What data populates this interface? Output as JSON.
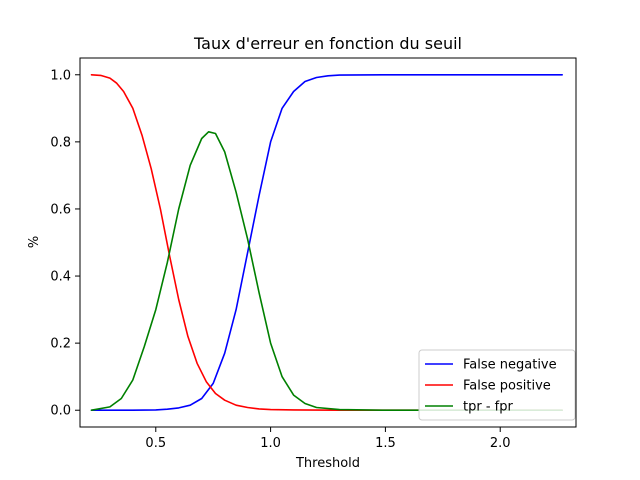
{
  "chart_data": {
    "type": "line",
    "title": "Taux d'erreur en fonction du seuil",
    "xlabel": "Threshold",
    "ylabel": "%",
    "xlim": [
      0.17,
      2.33
    ],
    "ylim": [
      -0.05,
      1.05
    ],
    "xticks": [
      0.5,
      1.0,
      1.5,
      2.0
    ],
    "xtick_labels": [
      "0.5",
      "1.0",
      "1.5",
      "2.0"
    ],
    "yticks": [
      0.0,
      0.2,
      0.4,
      0.6,
      0.8,
      1.0
    ],
    "ytick_labels": [
      "0.0",
      "0.2",
      "0.4",
      "0.6",
      "0.8",
      "1.0"
    ],
    "grid": false,
    "legend_position": "lower-right",
    "series": [
      {
        "name": "False negative",
        "color": "#0000ff",
        "x": [
          0.22,
          0.3,
          0.4,
          0.5,
          0.55,
          0.6,
          0.65,
          0.7,
          0.75,
          0.8,
          0.85,
          0.9,
          0.95,
          1.0,
          1.05,
          1.1,
          1.15,
          1.2,
          1.25,
          1.3,
          1.5,
          2.0,
          2.27
        ],
        "y": [
          0.0,
          0.0,
          0.0,
          0.001,
          0.003,
          0.007,
          0.015,
          0.035,
          0.08,
          0.17,
          0.3,
          0.47,
          0.64,
          0.8,
          0.9,
          0.95,
          0.98,
          0.992,
          0.997,
          0.999,
          1.0,
          1.0,
          1.0
        ]
      },
      {
        "name": "False positive",
        "color": "#ff0000",
        "x": [
          0.22,
          0.26,
          0.3,
          0.33,
          0.36,
          0.4,
          0.44,
          0.48,
          0.52,
          0.56,
          0.6,
          0.64,
          0.68,
          0.72,
          0.76,
          0.8,
          0.85,
          0.9,
          0.95,
          1.0,
          1.1,
          1.3,
          1.5,
          2.0,
          2.27
        ],
        "y": [
          1.0,
          0.998,
          0.99,
          0.975,
          0.95,
          0.9,
          0.82,
          0.72,
          0.6,
          0.46,
          0.33,
          0.22,
          0.14,
          0.085,
          0.05,
          0.03,
          0.015,
          0.008,
          0.004,
          0.002,
          0.001,
          0.0,
          0.0,
          0.0,
          0.0
        ]
      },
      {
        "name": "tpr - fpr",
        "color": "#008000",
        "x": [
          0.22,
          0.3,
          0.35,
          0.4,
          0.45,
          0.5,
          0.55,
          0.6,
          0.65,
          0.7,
          0.73,
          0.76,
          0.8,
          0.85,
          0.9,
          0.95,
          1.0,
          1.05,
          1.1,
          1.15,
          1.2,
          1.3,
          1.5,
          2.0,
          2.27
        ],
        "y": [
          0.0,
          0.01,
          0.035,
          0.09,
          0.19,
          0.3,
          0.44,
          0.6,
          0.73,
          0.81,
          0.83,
          0.825,
          0.77,
          0.65,
          0.51,
          0.35,
          0.2,
          0.1,
          0.045,
          0.02,
          0.008,
          0.002,
          0.0,
          0.0,
          0.0
        ]
      }
    ]
  }
}
